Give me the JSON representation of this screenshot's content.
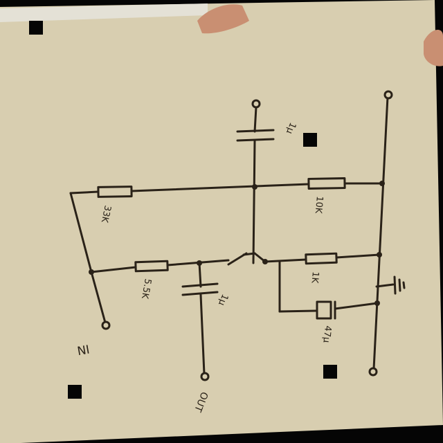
{
  "labels": {
    "r_top_left": "33K",
    "r_top_right": "10K",
    "r_base": "5.5K",
    "r_emitter": "1K",
    "c_top": "1μ",
    "c_base": "1μ",
    "c_emitter": "47μ",
    "node_in": "IN",
    "node_out": "OUT"
  },
  "colors": {
    "paper": "#d8ceb0",
    "ink": "#2a2218",
    "background": "#050505",
    "skin": "#c98f72"
  }
}
